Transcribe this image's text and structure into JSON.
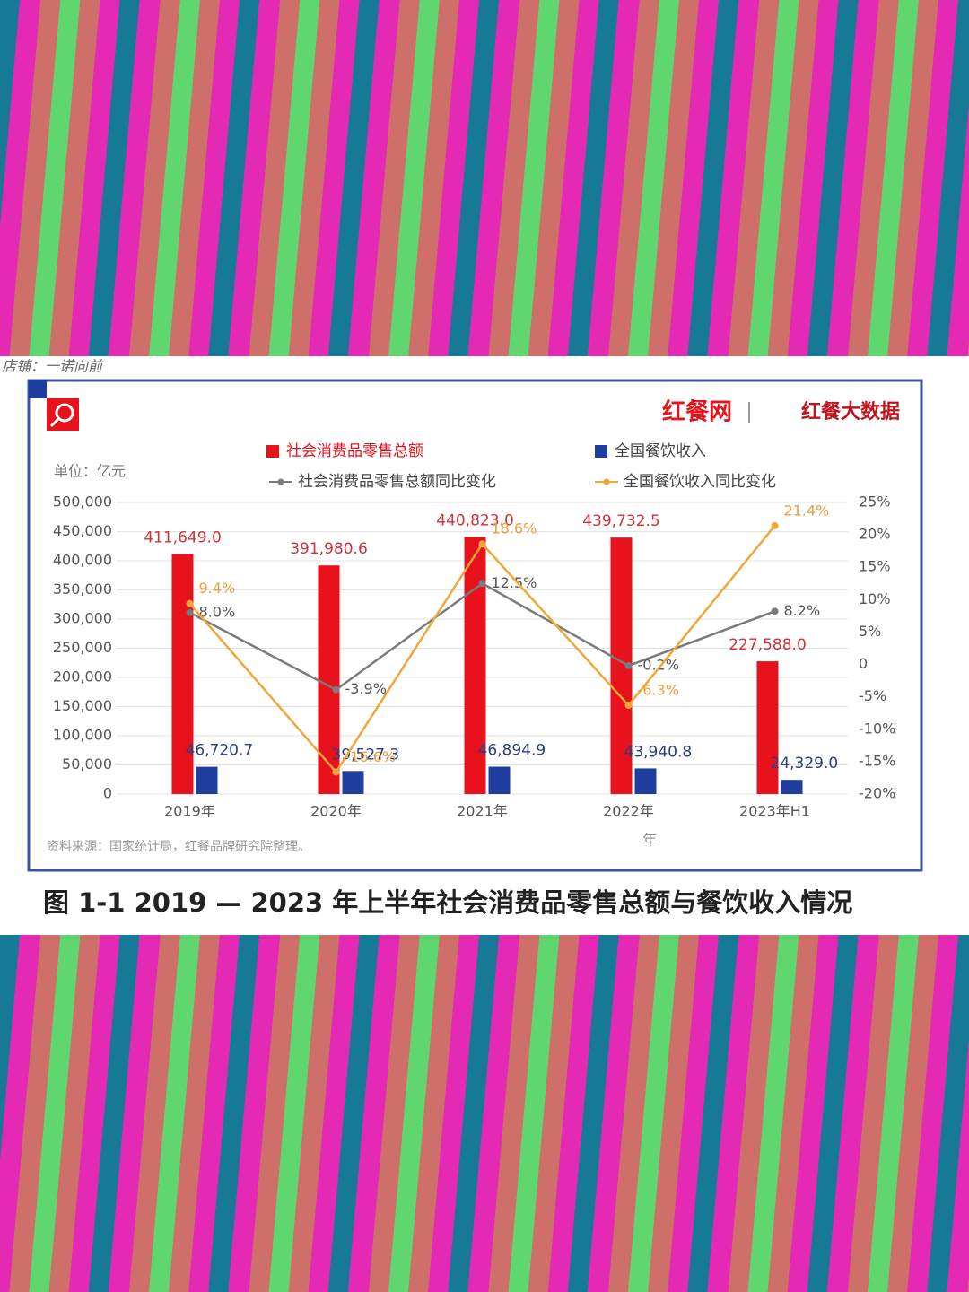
{
  "page": {
    "shop": "店铺：一诺向前",
    "logo_left": "红餐网",
    "logo_right": "红餐大数据"
  },
  "chart_data": {
    "type": "bar",
    "caption": "图 1-1     2019 — 2023 年上半年社会消费品零售总额与餐饮收入情况",
    "y_unit": "单位：亿元",
    "x_label": "年",
    "source": "资料来源：国家统计局，红餐品牌研究院整理。",
    "categories": [
      "2019年",
      "2020年",
      "2021年",
      "2022年",
      "2023年H1"
    ],
    "series": [
      {
        "name": "社会消费品零售总额",
        "type": "bar",
        "color": "#e8121c",
        "values": [
          411649.0,
          391980.6,
          440823.0,
          439732.5,
          227588.0
        ],
        "value_labels": [
          "411,649.0",
          "391,980.6",
          "440,823.0",
          "439,732.5",
          "227,588.0"
        ]
      },
      {
        "name": "全国餐饮收入",
        "type": "bar",
        "color": "#1f3ea0",
        "values": [
          46720.7,
          39527.3,
          46894.9,
          43940.8,
          24329.0
        ],
        "value_labels": [
          "46,720.7",
          "39,527.3",
          "46,894.9",
          "43,940.8",
          "24,329.0"
        ]
      },
      {
        "name": "社会消费品零售总额同比变化",
        "type": "line",
        "axis": "y2",
        "color": "#7b7b7b",
        "values": [
          8.0,
          -3.9,
          12.5,
          -0.2,
          8.2
        ],
        "value_labels": [
          "8.0%",
          "-3.9%",
          "12.5%",
          "-0.2%",
          "8.2%"
        ]
      },
      {
        "name": "全国餐饮收入同比变化",
        "type": "line",
        "axis": "y2",
        "color": "#f0a73a",
        "values": [
          9.4,
          -16.6,
          18.6,
          -6.3,
          21.4
        ],
        "value_labels": [
          "9.4%",
          "-16.6%",
          "18.6%",
          "-6.3%",
          "21.4%"
        ]
      }
    ],
    "ylim": [
      0,
      500000
    ],
    "yticks": [
      {
        "value": 0,
        "label": "0"
      },
      {
        "value": 50000,
        "label": "50,000"
      },
      {
        "value": 100000,
        "label": "100,000"
      },
      {
        "value": 150000,
        "label": "150,000"
      },
      {
        "value": 200000,
        "label": "200,000"
      },
      {
        "value": 250000,
        "label": "250,000"
      },
      {
        "value": 300000,
        "label": "300,000"
      },
      {
        "value": 350000,
        "label": "350,000"
      },
      {
        "value": 400000,
        "label": "400,000"
      },
      {
        "value": 450000,
        "label": "450,000"
      },
      {
        "value": 500000,
        "label": "500,000"
      }
    ],
    "y2lim": [
      -20,
      25
    ],
    "y2ticks": [
      {
        "value": -20,
        "label": "-20%"
      },
      {
        "value": -15,
        "label": "-15%"
      },
      {
        "value": -10,
        "label": "-10%"
      },
      {
        "value": -5,
        "label": "-5%"
      },
      0,
      {
        "value": 5,
        "label": "5%"
      },
      {
        "value": 10,
        "label": "10%"
      },
      {
        "value": 15,
        "label": "15%"
      },
      {
        "value": 20,
        "label": "20%"
      },
      {
        "value": 25,
        "label": "25%"
      }
    ],
    "grid": true
  }
}
